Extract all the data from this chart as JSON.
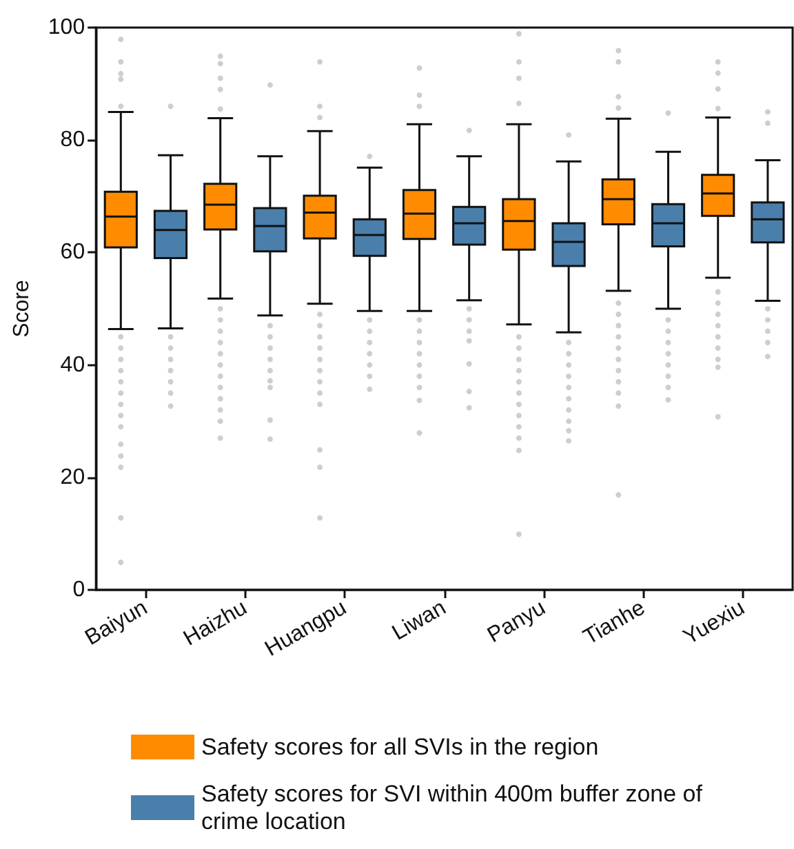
{
  "chart_data": {
    "type": "box",
    "ylabel": "Score",
    "categories": [
      "Baiyun",
      "Haizhu",
      "Huangpu",
      "Liwan",
      "Panyu",
      "Tianhe",
      "Yuexiu"
    ],
    "ylim": [
      0,
      100
    ],
    "yticks": [
      0,
      20,
      40,
      60,
      80,
      100
    ],
    "grid": false,
    "legend": "bottom",
    "series": [
      {
        "name": "Safety scores for all SVIs in the region",
        "color": "#ff8c00",
        "boxes": [
          {
            "low": 46.4,
            "q1": 60.9,
            "median": 66.4,
            "q3": 70.8,
            "high": 85.0,
            "outliers": [
              97.9,
              93.9,
              91.8,
              90.8,
              86.0,
              45,
              43,
              41,
              39,
              37,
              35,
              33,
              31,
              29,
              25.9,
              23.8,
              21.8,
              12.8,
              4.9
            ]
          },
          {
            "low": 51.8,
            "q1": 64.1,
            "median": 68.5,
            "q3": 72.2,
            "high": 83.9,
            "outliers": [
              94.9,
              93.6,
              91,
              89,
              85.5,
              50,
              48,
              46,
              44,
              42,
              40,
              38,
              36,
              34,
              32,
              30,
              27.0
            ]
          },
          {
            "low": 50.9,
            "q1": 62.5,
            "median": 67.1,
            "q3": 70.1,
            "high": 81.6,
            "outliers": [
              93.9,
              86.0,
              84,
              49,
              47,
              45,
              43,
              41,
              39,
              37,
              35,
              33.0,
              24.9,
              21.8,
              12.8
            ]
          },
          {
            "low": 49.6,
            "q1": 62.4,
            "median": 66.9,
            "q3": 71.1,
            "high": 82.8,
            "outliers": [
              92.8,
              88,
              86,
              48,
              46,
              44,
              42,
              40,
              38,
              36,
              33.7,
              27.9
            ]
          },
          {
            "low": 47.2,
            "q1": 60.5,
            "median": 65.6,
            "q3": 69.5,
            "high": 82.8,
            "outliers": [
              98.9,
              93.9,
              91,
              86.5,
              45,
              43,
              41,
              39,
              37,
              35,
              33,
              31,
              29,
              27,
              24.8,
              9.9
            ]
          },
          {
            "low": 53.2,
            "q1": 65.0,
            "median": 69.5,
            "q3": 73.0,
            "high": 83.8,
            "outliers": [
              95.9,
              93.9,
              87.7,
              85.7,
              51,
              49,
              47,
              45,
              43,
              41,
              39,
              37,
              35,
              32.7,
              16.9
            ]
          },
          {
            "low": 55.5,
            "q1": 66.5,
            "median": 70.5,
            "q3": 73.8,
            "high": 84.0,
            "outliers": [
              93.9,
              91.9,
              89.1,
              85.6,
              53,
              51,
              49,
              47,
              45,
              43,
              41,
              39.6,
              30.8
            ]
          }
        ]
      },
      {
        "name": "Safety scores for SVI within 400m buffer zone of crime location",
        "color": "#4a7fab",
        "boxes": [
          {
            "low": 46.5,
            "q1": 59.0,
            "median": 64.0,
            "q3": 67.4,
            "high": 77.3,
            "outliers": [
              86.0,
              45,
              43,
              41,
              39,
              37,
              35,
              32.7
            ]
          },
          {
            "low": 48.8,
            "q1": 60.2,
            "median": 64.7,
            "q3": 67.9,
            "high": 77.1,
            "outliers": [
              89.8,
              47,
              45,
              43,
              41,
              39,
              37.2,
              36,
              30.2,
              26.8
            ]
          },
          {
            "low": 49.6,
            "q1": 59.4,
            "median": 63.1,
            "q3": 65.9,
            "high": 75.1,
            "outliers": [
              77.1,
              48,
              46,
              44,
              42,
              40,
              38,
              35.7
            ]
          },
          {
            "low": 51.5,
            "q1": 61.4,
            "median": 65.2,
            "q3": 68.1,
            "high": 77.1,
            "outliers": [
              81.7,
              50,
              48,
              46,
              44.3,
              40.2,
              35.3,
              32.4
            ]
          },
          {
            "low": 45.8,
            "q1": 57.6,
            "median": 61.9,
            "q3": 65.2,
            "high": 76.2,
            "outliers": [
              80.9,
              44,
              42,
              40,
              38,
              36,
              34,
              32,
              30,
              28.3,
              26.5
            ]
          },
          {
            "low": 50.0,
            "q1": 61.1,
            "median": 65.2,
            "q3": 68.6,
            "high": 77.9,
            "outliers": [
              84.8,
              48,
              46,
              44,
              42,
              40,
              38,
              36,
              33.8
            ]
          },
          {
            "low": 51.4,
            "q1": 61.8,
            "median": 65.9,
            "q3": 68.9,
            "high": 76.4,
            "outliers": [
              85.0,
              83,
              50,
              48,
              46,
              44,
              41.5
            ]
          }
        ]
      }
    ]
  }
}
